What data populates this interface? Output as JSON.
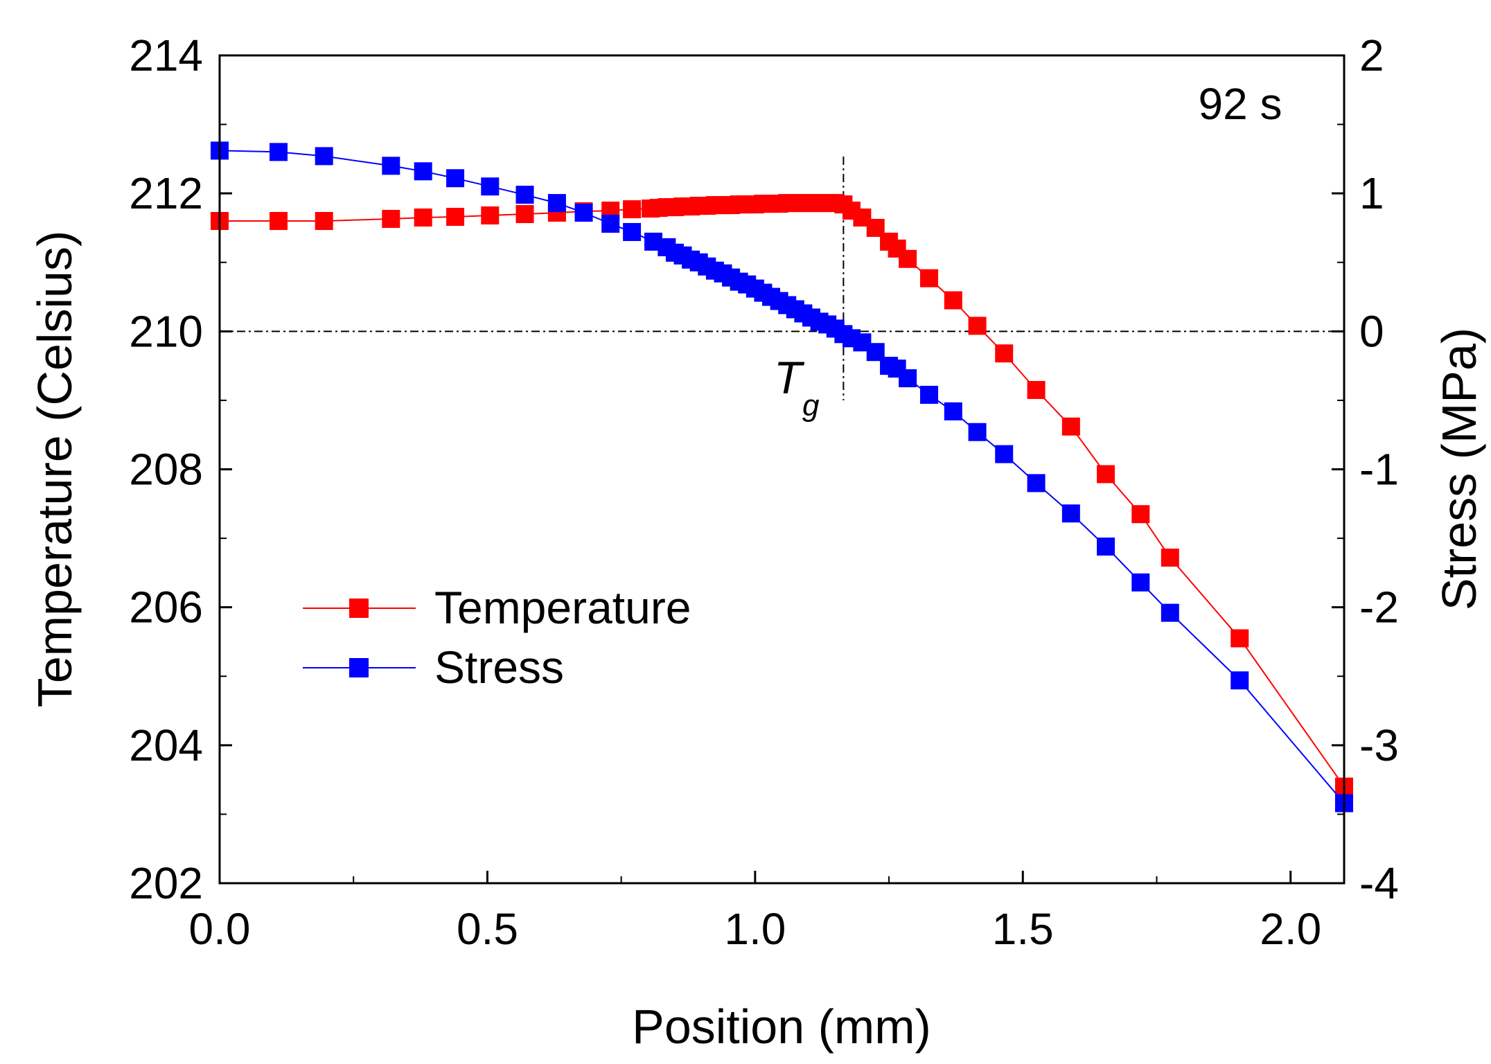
{
  "chart_data": {
    "type": "line",
    "title": "",
    "annotation": "92 s",
    "xlabel": "Position (mm)",
    "ylabel_left": "Temperature (Celsius)",
    "ylabel_right": "Stress (MPa)",
    "xlim": [
      0.0,
      2.1
    ],
    "ylim_left": [
      202,
      214
    ],
    "ylim_right": [
      -4,
      2
    ],
    "x_ticks": [
      "0.0",
      "0.5",
      "1.0",
      "1.5",
      "2.0"
    ],
    "y_left_ticks": [
      "202",
      "204",
      "206",
      "208",
      "210",
      "212",
      "214"
    ],
    "y_right_ticks": [
      "-4",
      "-3",
      "-2",
      "-1",
      "0",
      "1",
      "2"
    ],
    "reference_lines": {
      "stress_zero": 0,
      "tg_position": 1.165
    },
    "tg_label": {
      "main": "T",
      "sub": "g"
    },
    "legend_position": "center-left",
    "series": [
      {
        "name": "Temperature",
        "axis": "left",
        "color": "#ff0000",
        "x": [
          0.0,
          0.11,
          0.195,
          0.32,
          0.38,
          0.44,
          0.505,
          0.57,
          0.63,
          0.68,
          0.73,
          0.77,
          0.805,
          0.82,
          0.835,
          0.85,
          0.865,
          0.88,
          0.895,
          0.91,
          0.925,
          0.94,
          0.955,
          0.97,
          0.985,
          1.0,
          1.015,
          1.03,
          1.045,
          1.06,
          1.075,
          1.09,
          1.105,
          1.12,
          1.135,
          1.15,
          1.165,
          1.18,
          1.2,
          1.225,
          1.25,
          1.265,
          1.285,
          1.325,
          1.37,
          1.415,
          1.465,
          1.525,
          1.59,
          1.655,
          1.72,
          1.775,
          1.905,
          2.1
        ],
        "values": [
          211.6,
          211.6,
          211.6,
          211.63,
          211.65,
          211.66,
          211.68,
          211.7,
          211.72,
          211.74,
          211.75,
          211.77,
          211.78,
          211.79,
          211.8,
          211.8,
          211.81,
          211.81,
          211.82,
          211.82,
          211.83,
          211.83,
          211.83,
          211.84,
          211.84,
          211.84,
          211.85,
          211.85,
          211.85,
          211.86,
          211.86,
          211.86,
          211.86,
          211.86,
          211.86,
          211.86,
          211.84,
          211.75,
          211.65,
          211.5,
          211.3,
          211.2,
          211.05,
          210.77,
          210.45,
          210.08,
          209.68,
          209.15,
          208.62,
          207.93,
          207.35,
          206.72,
          205.55,
          203.4
        ]
      },
      {
        "name": "Stress",
        "axis": "right",
        "color": "#0000ff",
        "x": [
          0.0,
          0.11,
          0.195,
          0.32,
          0.38,
          0.44,
          0.505,
          0.57,
          0.63,
          0.68,
          0.73,
          0.77,
          0.81,
          0.835,
          0.85,
          0.865,
          0.88,
          0.895,
          0.91,
          0.925,
          0.94,
          0.955,
          0.97,
          0.985,
          1.0,
          1.015,
          1.03,
          1.045,
          1.06,
          1.075,
          1.09,
          1.105,
          1.12,
          1.135,
          1.15,
          1.165,
          1.18,
          1.2,
          1.225,
          1.25,
          1.265,
          1.285,
          1.325,
          1.37,
          1.415,
          1.465,
          1.525,
          1.59,
          1.655,
          1.72,
          1.775,
          1.905,
          2.1
        ],
        "values": [
          1.31,
          1.3,
          1.27,
          1.2,
          1.16,
          1.11,
          1.05,
          0.99,
          0.93,
          0.86,
          0.78,
          0.72,
          0.65,
          0.61,
          0.57,
          0.55,
          0.52,
          0.5,
          0.47,
          0.44,
          0.42,
          0.39,
          0.36,
          0.34,
          0.31,
          0.28,
          0.25,
          0.22,
          0.19,
          0.16,
          0.13,
          0.1,
          0.07,
          0.05,
          0.02,
          -0.02,
          -0.05,
          -0.08,
          -0.15,
          -0.25,
          -0.27,
          -0.34,
          -0.46,
          -0.58,
          -0.73,
          -0.89,
          -1.1,
          -1.32,
          -1.56,
          -1.82,
          -2.04,
          -2.53,
          -3.42
        ]
      }
    ]
  }
}
